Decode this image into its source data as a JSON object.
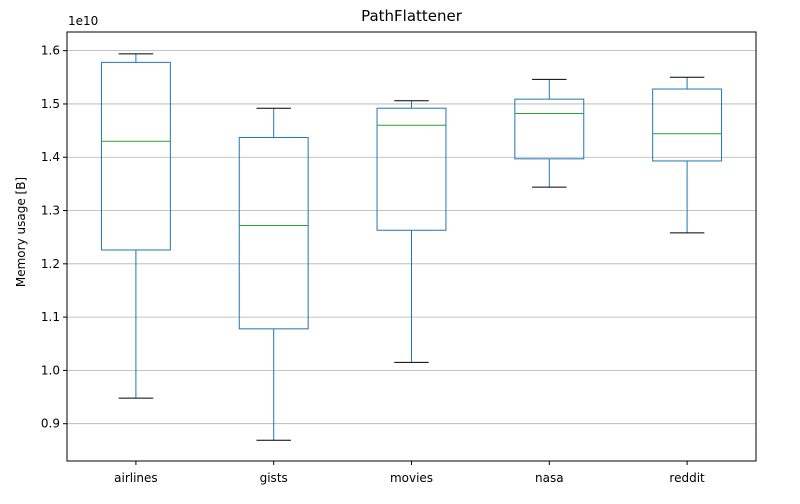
{
  "chart_data": {
    "type": "box",
    "title": "PathFlattener",
    "ylabel": "Memory usage [B]",
    "xlabel": "",
    "y_offset_label": "1e10",
    "ylim": [
      0.83,
      1.635
    ],
    "yticks": [
      0.9,
      1.0,
      1.1,
      1.2,
      1.3,
      1.4,
      1.5,
      1.6
    ],
    "ytick_labels": [
      "0.9",
      "1.0",
      "1.1",
      "1.2",
      "1.3",
      "1.4",
      "1.5",
      "1.6"
    ],
    "grid": "y",
    "categories": [
      "airlines",
      "gists",
      "movies",
      "nasa",
      "reddit"
    ],
    "boxes": [
      {
        "whisker_low": 0.948,
        "q1": 1.226,
        "median": 1.43,
        "q3": 1.578,
        "whisker_high": 1.594
      },
      {
        "whisker_low": 0.869,
        "q1": 1.078,
        "median": 1.272,
        "q3": 1.437,
        "whisker_high": 1.492
      },
      {
        "whisker_low": 1.015,
        "q1": 1.263,
        "median": 1.46,
        "q3": 1.492,
        "whisker_high": 1.506
      },
      {
        "whisker_low": 1.344,
        "q1": 1.397,
        "median": 1.482,
        "q3": 1.509,
        "whisker_high": 1.546
      },
      {
        "whisker_low": 1.258,
        "q1": 1.393,
        "median": 1.444,
        "q3": 1.528,
        "whisker_high": 1.55
      }
    ],
    "colors": {
      "box": "#1f77b4",
      "median": "#2ca02c",
      "whisker_cap": "#000000",
      "grid": "#b0b0b0"
    }
  }
}
